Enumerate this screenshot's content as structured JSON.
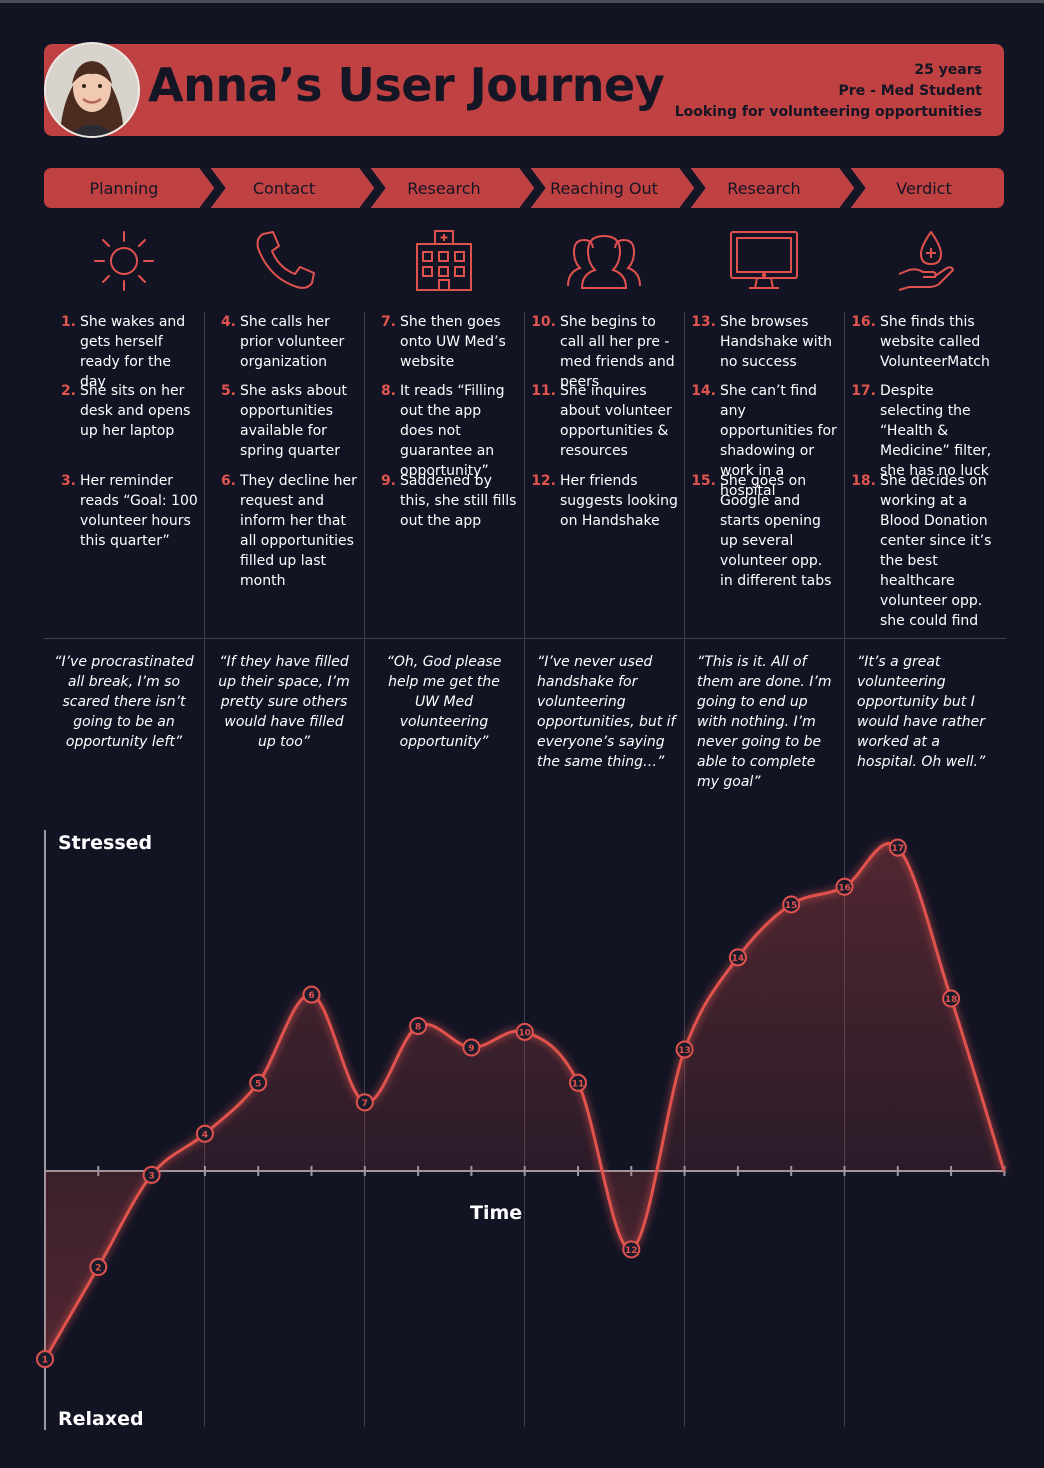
{
  "header": {
    "title": "Anna’s User Journey",
    "meta": [
      "25 years",
      "Pre - Med Student",
      "Looking for volunteering opportunities"
    ]
  },
  "phases": [
    "Planning",
    "Contact",
    "Research",
    "Reaching Out",
    "Research",
    "Verdict"
  ],
  "icons": [
    "sun-icon",
    "phone-icon",
    "hospital-icon",
    "people-icon",
    "monitor-icon",
    "blood-donation-icon"
  ],
  "columns": [
    {
      "steps": [
        {
          "num": "1.",
          "text": "She wakes and gets herself ready for the day"
        },
        {
          "num": "2.",
          "text": "She sits on her desk and opens up her laptop"
        },
        {
          "num": "3.",
          "text": "Her reminder reads “Goal: 100 volunteer hours this quarter”"
        }
      ],
      "quote": "“I’ve procrastinated all break, I’m so scared there isn’t going to be an opportunity left”"
    },
    {
      "steps": [
        {
          "num": "4.",
          "text": "She calls her prior volunteer organization"
        },
        {
          "num": "5.",
          "text": "She asks about opportunities available for spring quarter"
        },
        {
          "num": "6.",
          "text": " They decline her request and inform her that all opportunities filled up last month"
        }
      ],
      "quote": "“If they have filled up their space, I’m pretty sure others would have filled up too”"
    },
    {
      "steps": [
        {
          "num": "7.",
          "text": "She then goes onto UW Med’s website"
        },
        {
          "num": "8.",
          "text": "It reads “Filling out the app does not guarantee an opportunity”"
        },
        {
          "num": "9.",
          "text": "Saddened by this, she still fills out the app"
        }
      ],
      "quote": "“Oh, God please help me get the UW Med volunteering opportunity”"
    },
    {
      "steps": [
        {
          "num": "10.",
          "text": "She begins to call all her pre - med friends and peers"
        },
        {
          "num": "11.",
          "text": "She inquires about volunteer opportunities & resources"
        },
        {
          "num": "12.",
          "text": "Her friends suggests looking on Handshake"
        }
      ],
      "quote": "“I’ve never used handshake for volunteering opportunities, but if everyone’s saying the same thing…”"
    },
    {
      "steps": [
        {
          "num": "13.",
          "text": "She browses Handshake with no success"
        },
        {
          "num": "14.",
          "text": "She can’t find any opportunities for shadowing or work in a hospital"
        },
        {
          "num": "15.",
          "text": "She goes on Google and starts opening up several volunteer opp. in different tabs"
        }
      ],
      "quote": "“This is it. All of them are done. I’m going to end up with nothing. I’m never going to be able to complete my goal”"
    },
    {
      "steps": [
        {
          "num": "16.",
          "text": "She finds this website called VolunteerMatch"
        },
        {
          "num": "17.",
          "text": "Despite selecting the “Health & Medicine” filter, she has no luck"
        },
        {
          "num": "18.",
          "text": "She decides on working at a Blood Donation center since it’s the best healthcare volunteer opp. she could find"
        }
      ],
      "quote": "“It’s a great volunteering opportunity but I would have rather worked at a hospital. Oh well.”"
    }
  ],
  "chart_data": {
    "type": "line",
    "ylabel_top": "Stressed",
    "ylabel_bottom": "Relaxed",
    "xlabel": "Time",
    "ylim": [
      -100,
      175
    ],
    "x": [
      1,
      2,
      3,
      4,
      5,
      6,
      7,
      8,
      9,
      10,
      11,
      12,
      13,
      14,
      15,
      16,
      17,
      18
    ],
    "series": [
      {
        "values": [
          -96,
          -49,
          -2,
          19,
          45,
          90,
          35,
          74,
          63,
          71,
          45,
          -40,
          62,
          109,
          136,
          145,
          165,
          88
        ]
      }
    ],
    "end_value": 0,
    "color": "#e0524d"
  }
}
